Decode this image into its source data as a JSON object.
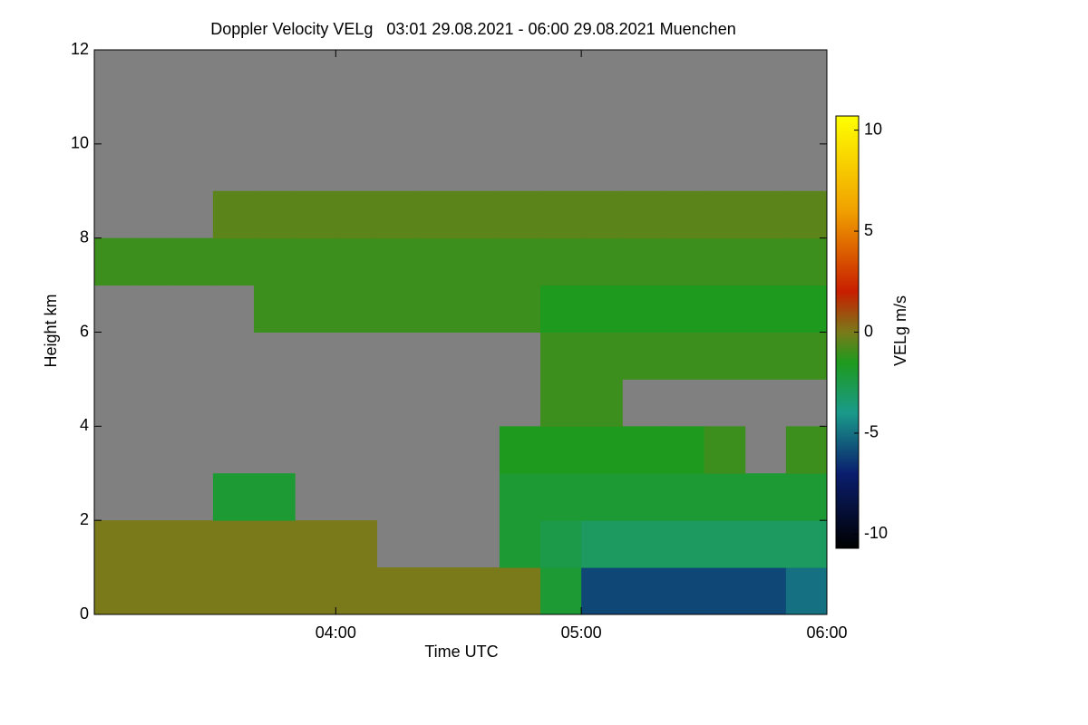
{
  "chart_data": {
    "type": "heatmap",
    "title": "Doppler Velocity VELg   03:01 29.08.2021 - 06:00 29.08.2021 Muenchen",
    "x_label": "Time UTC",
    "y_label": "Height km",
    "colorbar_label": "VELg m/s",
    "background": "#808080",
    "xlim": [
      3.0167,
      6.0
    ],
    "xticks": [
      {
        "value": 4,
        "label": "04:00"
      },
      {
        "value": 5,
        "label": "05:00"
      },
      {
        "value": 6,
        "label": "06:00"
      }
    ],
    "ylim": [
      0,
      12
    ],
    "yticks": [
      0,
      2,
      4,
      6,
      8,
      10,
      12
    ],
    "clim": [
      -10.7,
      10.7
    ],
    "cticks": [
      -10,
      -5,
      0,
      5,
      10
    ],
    "colorscale": [
      [
        -10.7,
        "#000000"
      ],
      [
        -7,
        "#0a1e6e"
      ],
      [
        -4,
        "#1a9a8a"
      ],
      [
        -1.5,
        "#1e9a1e"
      ],
      [
        0,
        "#7a7a1a"
      ],
      [
        2,
        "#c81e00"
      ],
      [
        6,
        "#f0a000"
      ],
      [
        10.7,
        "#ffff00"
      ]
    ],
    "x": [
      3.0833,
      3.25,
      3.4167,
      3.5833,
      3.75,
      3.9167,
      4.0833,
      4.25,
      4.4167,
      4.5833,
      4.75,
      4.9167,
      5.0833,
      5.25,
      5.4167,
      5.5833,
      5.75,
      5.9167
    ],
    "y": [
      0.5,
      1.5,
      2.5,
      3.5,
      4.5,
      5.5,
      6.5,
      7.5,
      8.5,
      9.5,
      10.5,
      11.5
    ],
    "z": [
      [
        0,
        0,
        0,
        0,
        0,
        0,
        0,
        0,
        0,
        0,
        0,
        -2,
        -6,
        -6,
        -6,
        -6,
        -6,
        -5
      ],
      [
        0,
        0,
        0,
        0,
        0,
        0,
        0,
        null,
        null,
        null,
        -2,
        -2.5,
        -3,
        -3,
        -3,
        -3,
        -3,
        -3
      ],
      [
        null,
        null,
        null,
        -2,
        -2,
        null,
        null,
        null,
        null,
        null,
        -2,
        -2,
        -2,
        -2,
        -2,
        -2,
        -2,
        -2
      ],
      [
        null,
        null,
        null,
        null,
        null,
        null,
        null,
        null,
        null,
        null,
        -1.5,
        -1.5,
        -1.5,
        -1.5,
        -1.5,
        -1,
        null,
        -1
      ],
      [
        null,
        null,
        null,
        null,
        null,
        null,
        null,
        null,
        null,
        null,
        null,
        -1,
        -1,
        null,
        null,
        null,
        null,
        null
      ],
      [
        null,
        null,
        null,
        null,
        null,
        null,
        null,
        null,
        null,
        null,
        null,
        -1,
        -1,
        -1,
        -1,
        -1,
        -1,
        -1
      ],
      [
        null,
        null,
        null,
        null,
        -1,
        -1,
        -1,
        -1,
        -1,
        -1,
        -1,
        -1.5,
        -1.5,
        -1.5,
        -1.5,
        -1.5,
        -1.5,
        -1.5
      ],
      [
        -1,
        -1,
        -1,
        -1,
        -1,
        -1,
        -1,
        -1,
        -1,
        -1,
        -1,
        -1,
        -1,
        -1,
        -1,
        -1,
        -1,
        -1
      ],
      [
        null,
        null,
        null,
        -0.5,
        -0.5,
        -0.5,
        -0.5,
        -0.5,
        -0.5,
        -0.5,
        -0.5,
        -0.5,
        -0.5,
        -0.5,
        -0.5,
        -0.5,
        -0.5,
        -0.5
      ],
      [
        null,
        null,
        null,
        null,
        null,
        null,
        null,
        null,
        null,
        null,
        null,
        null,
        null,
        null,
        null,
        null,
        null,
        null
      ],
      [
        null,
        null,
        null,
        null,
        null,
        null,
        null,
        null,
        null,
        null,
        null,
        null,
        null,
        null,
        null,
        null,
        null,
        null
      ],
      [
        null,
        null,
        null,
        null,
        null,
        null,
        null,
        null,
        null,
        null,
        null,
        null,
        null,
        null,
        null,
        null,
        null,
        null
      ]
    ]
  }
}
